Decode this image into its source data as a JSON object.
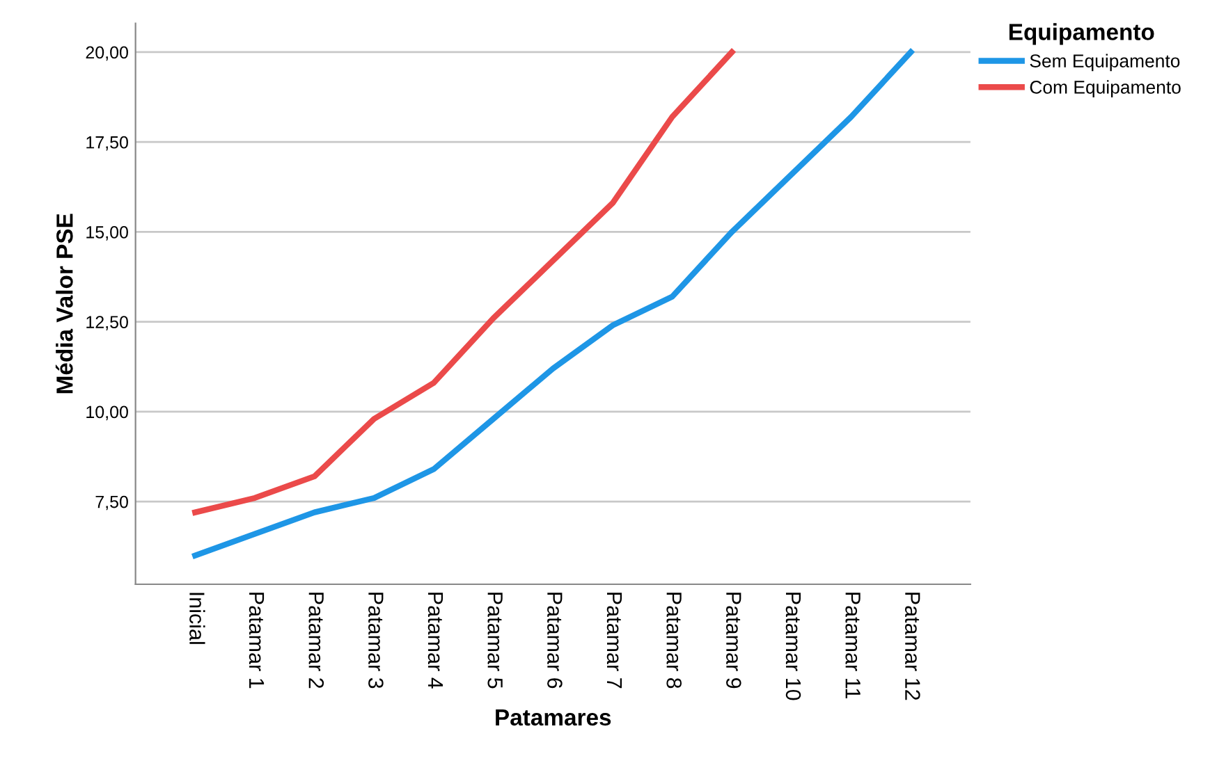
{
  "chart_data": {
    "type": "line",
    "xlabel": "Patamares",
    "ylabel": "Média Valor PSE",
    "legend_title": "Equipamento",
    "categories": [
      "Inicial",
      "Patamar 1",
      "Patamar 2",
      "Patamar 3",
      "Patamar 4",
      "Patamar 5",
      "Patamar 6",
      "Patamar 7",
      "Patamar 8",
      "Patamar 9",
      "Patamar 10",
      "Patamar 11",
      "Patamar 12"
    ],
    "series": [
      {
        "name": "Sem Equipamento",
        "color": "#1e96e6",
        "values": [
          6.0,
          6.6,
          7.2,
          7.6,
          8.4,
          9.8,
          11.2,
          12.4,
          13.2,
          15.0,
          16.6,
          18.2,
          20.0
        ]
      },
      {
        "name": "Com Equipamento",
        "color": "#eb4a4a",
        "values": [
          7.2,
          7.6,
          8.2,
          9.8,
          10.8,
          12.6,
          14.2,
          15.8,
          18.2,
          20.0,
          null,
          null,
          null
        ]
      }
    ],
    "ylim": [
      5.2,
      20.8
    ],
    "yticks": [
      {
        "value": 7.5,
        "label": "7,50"
      },
      {
        "value": 10,
        "label": "10,00"
      },
      {
        "value": 12.5,
        "label": "12,50"
      },
      {
        "value": 15,
        "label": "15,00"
      },
      {
        "value": 17.5,
        "label": "17,50"
      },
      {
        "value": 20,
        "label": "20,00"
      }
    ],
    "grid": "y",
    "legend": "top right",
    "marker": "none",
    "line_style": "solid"
  }
}
